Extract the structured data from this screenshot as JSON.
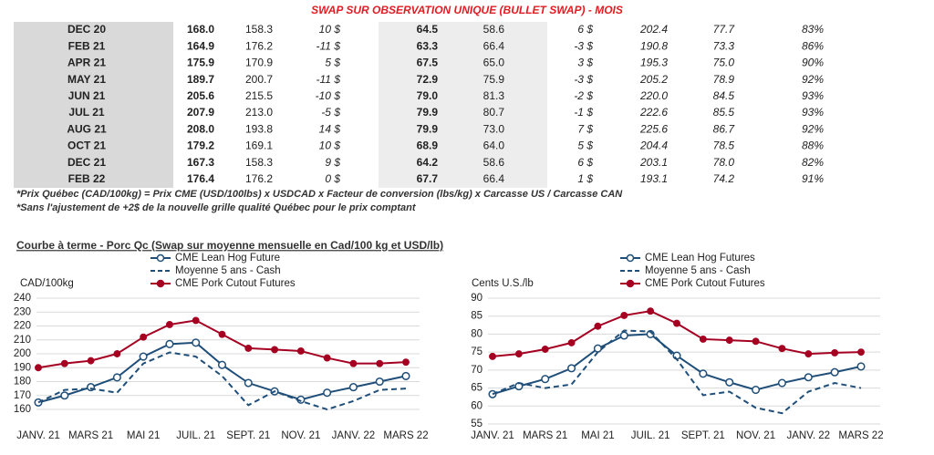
{
  "table": {
    "title": "SWAP SUR OBSERVATION UNIQUE (BULLET SWAP) - MOIS",
    "rows": [
      [
        "DEC 20",
        "168.0",
        "158.3",
        "10 $",
        "64.5",
        "58.6",
        "6 $",
        "202.4",
        "77.7",
        "83%"
      ],
      [
        "FEB 21",
        "164.9",
        "176.2",
        "-11 $",
        "63.3",
        "66.4",
        "-3 $",
        "190.8",
        "73.3",
        "86%"
      ],
      [
        "APR 21",
        "175.9",
        "170.9",
        "5 $",
        "67.5",
        "65.0",
        "3 $",
        "195.3",
        "75.0",
        "90%"
      ],
      [
        "MAY 21",
        "189.7",
        "200.7",
        "-11 $",
        "72.9",
        "75.9",
        "-3 $",
        "205.2",
        "78.9",
        "92%"
      ],
      [
        "JUN 21",
        "205.6",
        "215.5",
        "-10 $",
        "79.0",
        "81.3",
        "-2 $",
        "220.0",
        "84.5",
        "93%"
      ],
      [
        "JUL 21",
        "207.9",
        "213.0",
        "-5 $",
        "79.9",
        "80.7",
        "-1 $",
        "222.6",
        "85.5",
        "93%"
      ],
      [
        "AUG 21",
        "208.0",
        "193.8",
        "14 $",
        "79.9",
        "73.0",
        "7 $",
        "225.6",
        "86.7",
        "92%"
      ],
      [
        "OCT 21",
        "179.2",
        "169.1",
        "10 $",
        "68.9",
        "64.0",
        "5 $",
        "204.4",
        "78.5",
        "88%"
      ],
      [
        "DEC 21",
        "167.3",
        "158.3",
        "9 $",
        "64.2",
        "58.6",
        "6 $",
        "203.1",
        "78.0",
        "82%"
      ],
      [
        "FEB 22",
        "176.4",
        "176.2",
        "0 $",
        "67.7",
        "66.4",
        "1 $",
        "193.1",
        "74.2",
        "91%"
      ]
    ],
    "notes": [
      "*Prix Québec (CAD/100kg) = Prix CME (USD/100lbs) x USDCAD x Facteur de conversion (lbs/kg) x Carcasse US / Carcasse CAN",
      "*Sans l'ajustement de +2$ de la nouvelle grille qualité Québec pour le prix comptant"
    ]
  },
  "section_title": "Courbe à terme - Porc Qc (Swap sur moyenne mensuelle en Cad/100 kg et USD/lb)",
  "chart_data": [
    {
      "type": "line",
      "ylabel": "CAD/100kg",
      "categories": [
        "JANV. 21",
        null,
        "MARS 21",
        null,
        "MAI 21",
        null,
        "JUIL. 21",
        null,
        "SEPT. 21",
        null,
        "NOV. 21",
        null,
        "JANV. 22",
        null,
        "MARS 22"
      ],
      "ylim": [
        160,
        240
      ],
      "yticks": [
        160,
        170,
        180,
        190,
        200,
        210,
        220,
        230,
        240
      ],
      "grid": true,
      "legend": "top",
      "series": [
        {
          "name": "CME Lean Hog Future",
          "color": "#1f4e79",
          "marker": "open",
          "dashed": false,
          "values": [
            165,
            170,
            176,
            183,
            198,
            207,
            208,
            192,
            179,
            173,
            167,
            172,
            176,
            180,
            184
          ]
        },
        {
          "name": "Moyenne 5 ans - Cash",
          "color": "#1f4e79",
          "marker": "none",
          "dashed": true,
          "values": [
            165,
            174,
            175,
            172,
            193,
            201,
            198,
            184,
            163,
            173,
            166,
            160,
            166,
            174,
            175
          ]
        },
        {
          "name": "CME Pork Cutout Futures",
          "color": "#a50021",
          "marker": "filled",
          "dashed": false,
          "values": [
            190,
            193,
            195,
            200,
            212,
            221,
            224,
            214,
            204,
            203,
            202,
            197,
            193,
            193,
            194
          ]
        }
      ]
    },
    {
      "type": "line",
      "ylabel": "Cents U.S./lb",
      "categories": [
        "JANV. 21",
        null,
        "MARS 21",
        null,
        "MAI 21",
        null,
        "JUIL. 21",
        null,
        "SEPT. 21",
        null,
        "NOV. 21",
        null,
        "JANV. 22",
        null,
        "MARS 22"
      ],
      "ylim": [
        55,
        90
      ],
      "yticks": [
        55,
        60,
        65,
        70,
        75,
        80,
        85,
        90
      ],
      "grid": true,
      "legend": "top",
      "series": [
        {
          "name": "CME Lean Hog Futures",
          "color": "#1f4e79",
          "marker": "open",
          "dashed": false,
          "values": [
            63.3,
            65.5,
            67.5,
            70.5,
            76,
            79.6,
            80,
            74,
            69,
            66.6,
            64.5,
            66.4,
            68,
            69.4,
            71
          ]
        },
        {
          "name": "Moyenne 5 ans - Cash",
          "color": "#1f4e79",
          "marker": "none",
          "dashed": true,
          "values": [
            63.3,
            66.4,
            65,
            66,
            75,
            81,
            80.7,
            73,
            63,
            64,
            59.5,
            58,
            64,
            66.4,
            65
          ]
        },
        {
          "name": "CME Pork Cutout Futures",
          "color": "#a50021",
          "marker": "filled",
          "dashed": false,
          "values": [
            73.8,
            74.5,
            75.8,
            77.6,
            82.2,
            85.2,
            86.4,
            83,
            78.6,
            78.3,
            78,
            76,
            74.5,
            74.8,
            75
          ]
        }
      ]
    }
  ]
}
